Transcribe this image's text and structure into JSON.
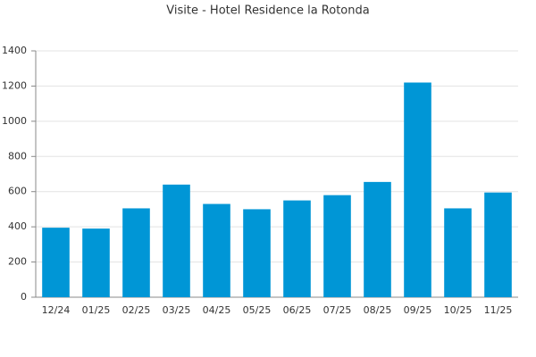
{
  "chart_data": {
    "type": "bar",
    "title": "Visite - Hotel Residence la Rotonda",
    "categories": [
      "12/24",
      "01/25",
      "02/25",
      "03/25",
      "04/25",
      "05/25",
      "06/25",
      "07/25",
      "08/25",
      "09/25",
      "10/25",
      "11/25"
    ],
    "values": [
      395,
      390,
      505,
      640,
      530,
      500,
      550,
      580,
      655,
      1220,
      505,
      595
    ],
    "color": "#0096d6",
    "ylim": [
      0,
      1400
    ],
    "yticks": [
      0,
      200,
      400,
      600,
      800,
      1000,
      1200,
      1400
    ],
    "grid": true
  }
}
